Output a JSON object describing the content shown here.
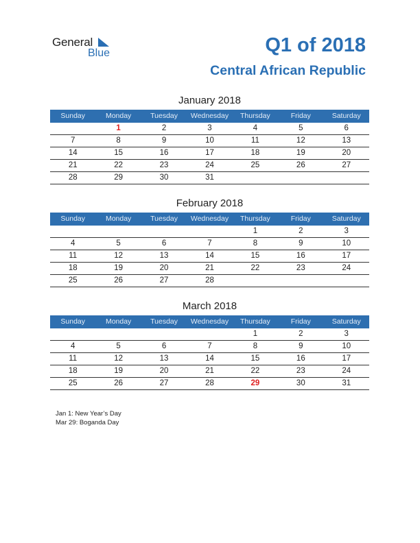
{
  "logo": {
    "general": "General",
    "blue": "Blue"
  },
  "header": {
    "title": "Q1 of 2018",
    "subtitle": "Central African Republic"
  },
  "weekdays": [
    "Sunday",
    "Monday",
    "Tuesday",
    "Wednesday",
    "Thursday",
    "Friday",
    "Saturday"
  ],
  "months": [
    {
      "title": "January 2018",
      "weeks": [
        [
          "",
          "1",
          "2",
          "3",
          "4",
          "5",
          "6"
        ],
        [
          "7",
          "8",
          "9",
          "10",
          "11",
          "12",
          "13"
        ],
        [
          "14",
          "15",
          "16",
          "17",
          "18",
          "19",
          "20"
        ],
        [
          "21",
          "22",
          "23",
          "24",
          "25",
          "26",
          "27"
        ],
        [
          "28",
          "29",
          "30",
          "31",
          "",
          "",
          ""
        ]
      ],
      "holidays": [
        "1"
      ]
    },
    {
      "title": "February 2018",
      "weeks": [
        [
          "",
          "",
          "",
          "",
          "1",
          "2",
          "3"
        ],
        [
          "4",
          "5",
          "6",
          "7",
          "8",
          "9",
          "10"
        ],
        [
          "11",
          "12",
          "13",
          "14",
          "15",
          "16",
          "17"
        ],
        [
          "18",
          "19",
          "20",
          "21",
          "22",
          "23",
          "24"
        ],
        [
          "25",
          "26",
          "27",
          "28",
          "",
          "",
          ""
        ]
      ],
      "holidays": []
    },
    {
      "title": "March 2018",
      "weeks": [
        [
          "",
          "",
          "",
          "",
          "1",
          "2",
          "3"
        ],
        [
          "4",
          "5",
          "6",
          "7",
          "8",
          "9",
          "10"
        ],
        [
          "11",
          "12",
          "13",
          "14",
          "15",
          "16",
          "17"
        ],
        [
          "18",
          "19",
          "20",
          "21",
          "22",
          "23",
          "24"
        ],
        [
          "25",
          "26",
          "27",
          "28",
          "29",
          "30",
          "31"
        ]
      ],
      "holidays": [
        "29"
      ]
    }
  ],
  "notes": [
    "Jan 1: New Year’s Day",
    "Mar 29: Boganda Day"
  ],
  "colors": {
    "accent": "#2a6fb4",
    "header_bar": "#2e6fb0",
    "holiday": "#e02020"
  }
}
